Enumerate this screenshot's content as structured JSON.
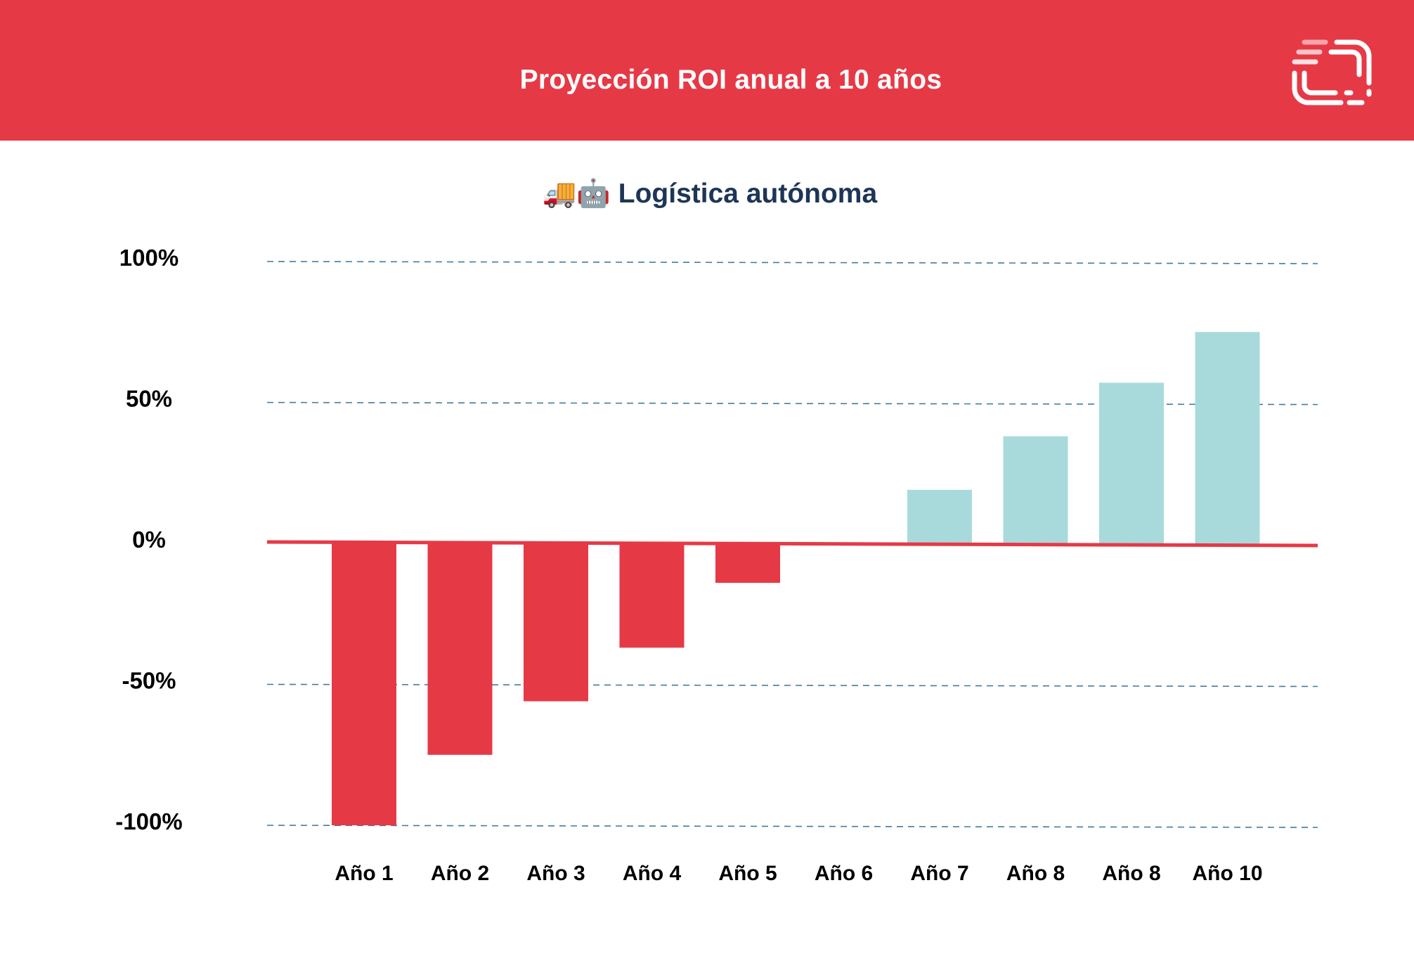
{
  "header": {
    "title": "Proyección ROI anual a 10 años",
    "logo_icon": "brand-logo-icon"
  },
  "colors": {
    "header_bg": "#e63946",
    "negative_bar": "#e63946",
    "positive_bar": "#a8dadc",
    "zero_line": "#e63946",
    "grid_line": "#457b9d",
    "text": "#000000",
    "title_text": "#1d3557"
  },
  "chart_data": {
    "type": "bar",
    "title": "🚚🤖 Logística autónoma",
    "title_icons": [
      "truck-icon",
      "robot-icon"
    ],
    "categories": [
      "Año 1",
      "Año 2",
      "Año 3",
      "Año 4",
      "Año 5",
      "Año 6",
      "Año 7",
      "Año 8",
      "Año 8",
      "Año 10"
    ],
    "values": [
      -100,
      -75,
      -56,
      -37,
      -14,
      0,
      19,
      38,
      57,
      75
    ],
    "ylim": [
      -100,
      100
    ],
    "yticks": [
      100,
      50,
      0,
      -50,
      -100
    ],
    "ytick_labels": [
      "100%",
      "50%",
      "0%",
      "-50%",
      "-100%"
    ],
    "xlabel": "",
    "ylabel": "",
    "grid": true,
    "legend": false
  }
}
